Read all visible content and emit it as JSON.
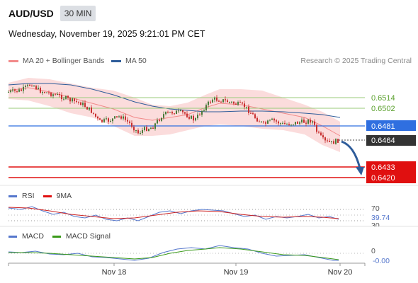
{
  "header": {
    "symbol": "AUD/USD",
    "interval": "30 MIN"
  },
  "datetime": "Wednesday, November 19, 2025 9:21:01 PM CET",
  "legend": {
    "items": [
      {
        "label": "MA 20 + Bollinger Bands",
        "color": "#f28a8a"
      },
      {
        "label": "MA 50",
        "color": "#2e5c9a"
      }
    ],
    "credit": "Research © 2025 Trading Central"
  },
  "levels": {
    "resistance_2": {
      "value": "0.6514",
      "color": "#5aa02c"
    },
    "resistance_1": {
      "value": "0.6502",
      "color": "#5aa02c"
    },
    "pivot": {
      "value": "0.6481",
      "color": "#2f6fe0"
    },
    "last": {
      "value": "0.6464",
      "color": "#333333"
    },
    "support_1": {
      "value": "0.6433",
      "color": "#e01010"
    },
    "support_2": {
      "value": "0.6420",
      "color": "#e01010"
    }
  },
  "rsi": {
    "label": "RSI",
    "ma_label": "9MA",
    "level_70": "70",
    "value": "39.74",
    "level_30": "30"
  },
  "macd": {
    "label": "MACD",
    "signal_label": "MACD Signal",
    "zero": "0",
    "value": "-0.00"
  },
  "xaxis": {
    "labels": [
      "Nov 18",
      "Nov 19",
      "Nov 20"
    ]
  },
  "colors": {
    "rsi": "#5577cc",
    "rsi_ma": "#cc2222",
    "macd": "#5577cc",
    "macd_signal": "#3a9a1a"
  }
}
